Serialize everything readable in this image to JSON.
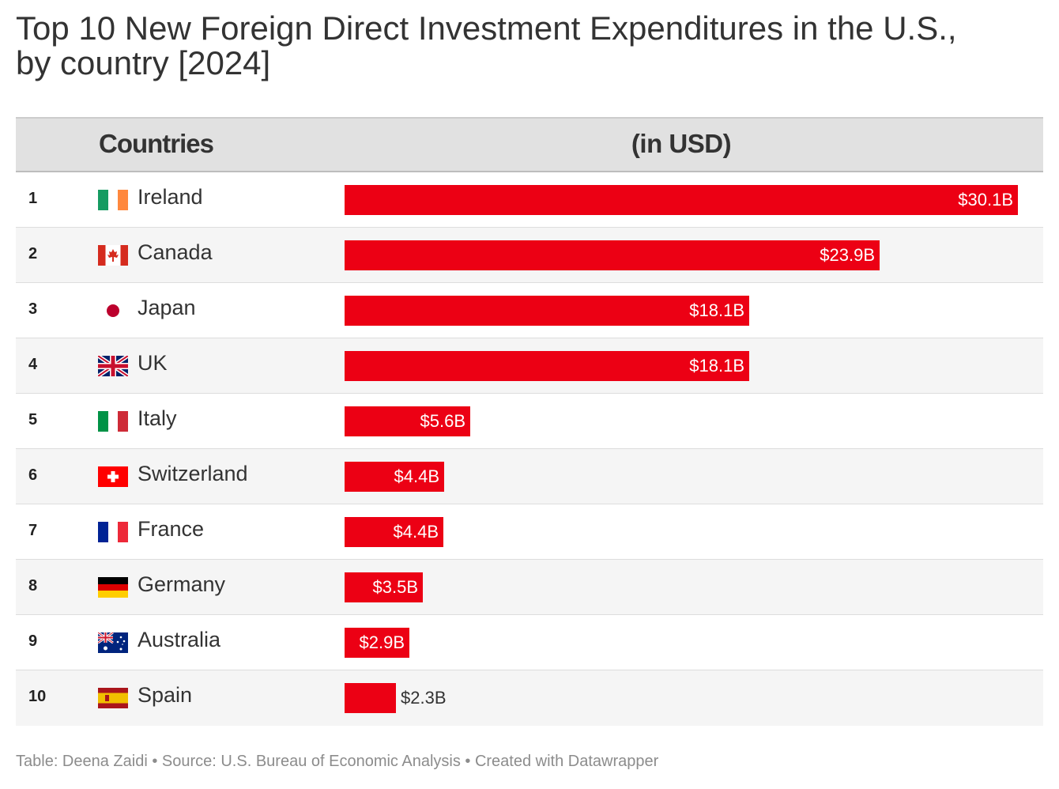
{
  "title": {
    "line1": "Top 10 New Foreign Direct Investment Expenditures in the U.S.,",
    "line2": "by country [2024]"
  },
  "header": {
    "countries": "Countries",
    "value": "(in USD)"
  },
  "footer": "Table: Deena Zaidi • Source: U.S. Bureau of Economic Analysis • Created with Datawrapper",
  "colors": {
    "bar": "#ec0014",
    "header_bg": "#e1e1e1",
    "alt_row": "#f5f5f5"
  },
  "chart_data": {
    "type": "bar",
    "orientation": "horizontal",
    "xlim": [
      0,
      30.1
    ],
    "unit": "B USD",
    "rows": [
      {
        "rank": "1",
        "country": "Ireland",
        "flag": "ireland-flag-icon",
        "value": 30.1,
        "label": "$30.1B"
      },
      {
        "rank": "2",
        "country": "Canada",
        "flag": "canada-flag-icon",
        "value": 23.9,
        "label": "$23.9B"
      },
      {
        "rank": "3",
        "country": "Japan",
        "flag": "japan-flag-icon",
        "value": 18.1,
        "label": "$18.1B"
      },
      {
        "rank": "4",
        "country": "UK",
        "flag": "uk-flag-icon",
        "value": 18.1,
        "label": "$18.1B"
      },
      {
        "rank": "5",
        "country": "Italy",
        "flag": "italy-flag-icon",
        "value": 5.6,
        "label": "$5.6B"
      },
      {
        "rank": "6",
        "country": "Switzerland",
        "flag": "switzerland-flag-icon",
        "value": 4.45,
        "label": "$4.4B"
      },
      {
        "rank": "7",
        "country": "France",
        "flag": "france-flag-icon",
        "value": 4.4,
        "label": "$4.4B"
      },
      {
        "rank": "8",
        "country": "Germany",
        "flag": "germany-flag-icon",
        "value": 3.5,
        "label": "$3.5B"
      },
      {
        "rank": "9",
        "country": "Australia",
        "flag": "australia-flag-icon",
        "value": 2.9,
        "label": "$2.9B"
      },
      {
        "rank": "10",
        "country": "Spain",
        "flag": "spain-flag-icon",
        "value": 2.3,
        "label": "$2.3B"
      }
    ]
  }
}
